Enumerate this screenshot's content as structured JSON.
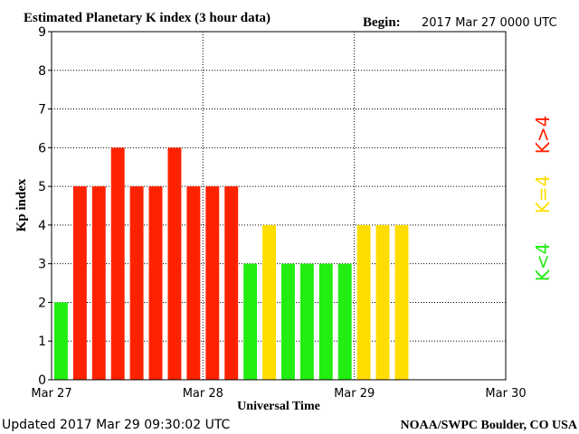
{
  "header": {
    "title": "Estimated Planetary K index (3 hour data)",
    "begin_label": "Begin:",
    "begin_value": "2017 Mar 27 0000 UTC"
  },
  "footer": {
    "updated": "Updated 2017 Mar 29 09:30:02 UTC",
    "credit": "NOAA/SWPC Boulder, CO USA"
  },
  "legend": {
    "green": "K<4",
    "yellow": "K=4",
    "red": "K>4"
  },
  "colors": {
    "green": "#22ee11",
    "yellow": "#ffdd00",
    "red": "#ff2200"
  },
  "chart_data": {
    "type": "bar",
    "title": "Estimated Planetary K index (3 hour data)",
    "xlabel": "Universal Time",
    "ylabel": "Kp index",
    "ylim": [
      0,
      9
    ],
    "yticks": [
      0,
      1,
      2,
      3,
      4,
      5,
      6,
      7,
      8,
      9
    ],
    "xticks": [
      "Mar 27",
      "Mar 28",
      "Mar 29",
      "Mar 30"
    ],
    "interval_hours": 3,
    "total_intervals": 24,
    "grid": true,
    "values": [
      2,
      5,
      5,
      6,
      5,
      5,
      6,
      5,
      5,
      5,
      3,
      4,
      3,
      3,
      3,
      3,
      4,
      4,
      4
    ]
  }
}
